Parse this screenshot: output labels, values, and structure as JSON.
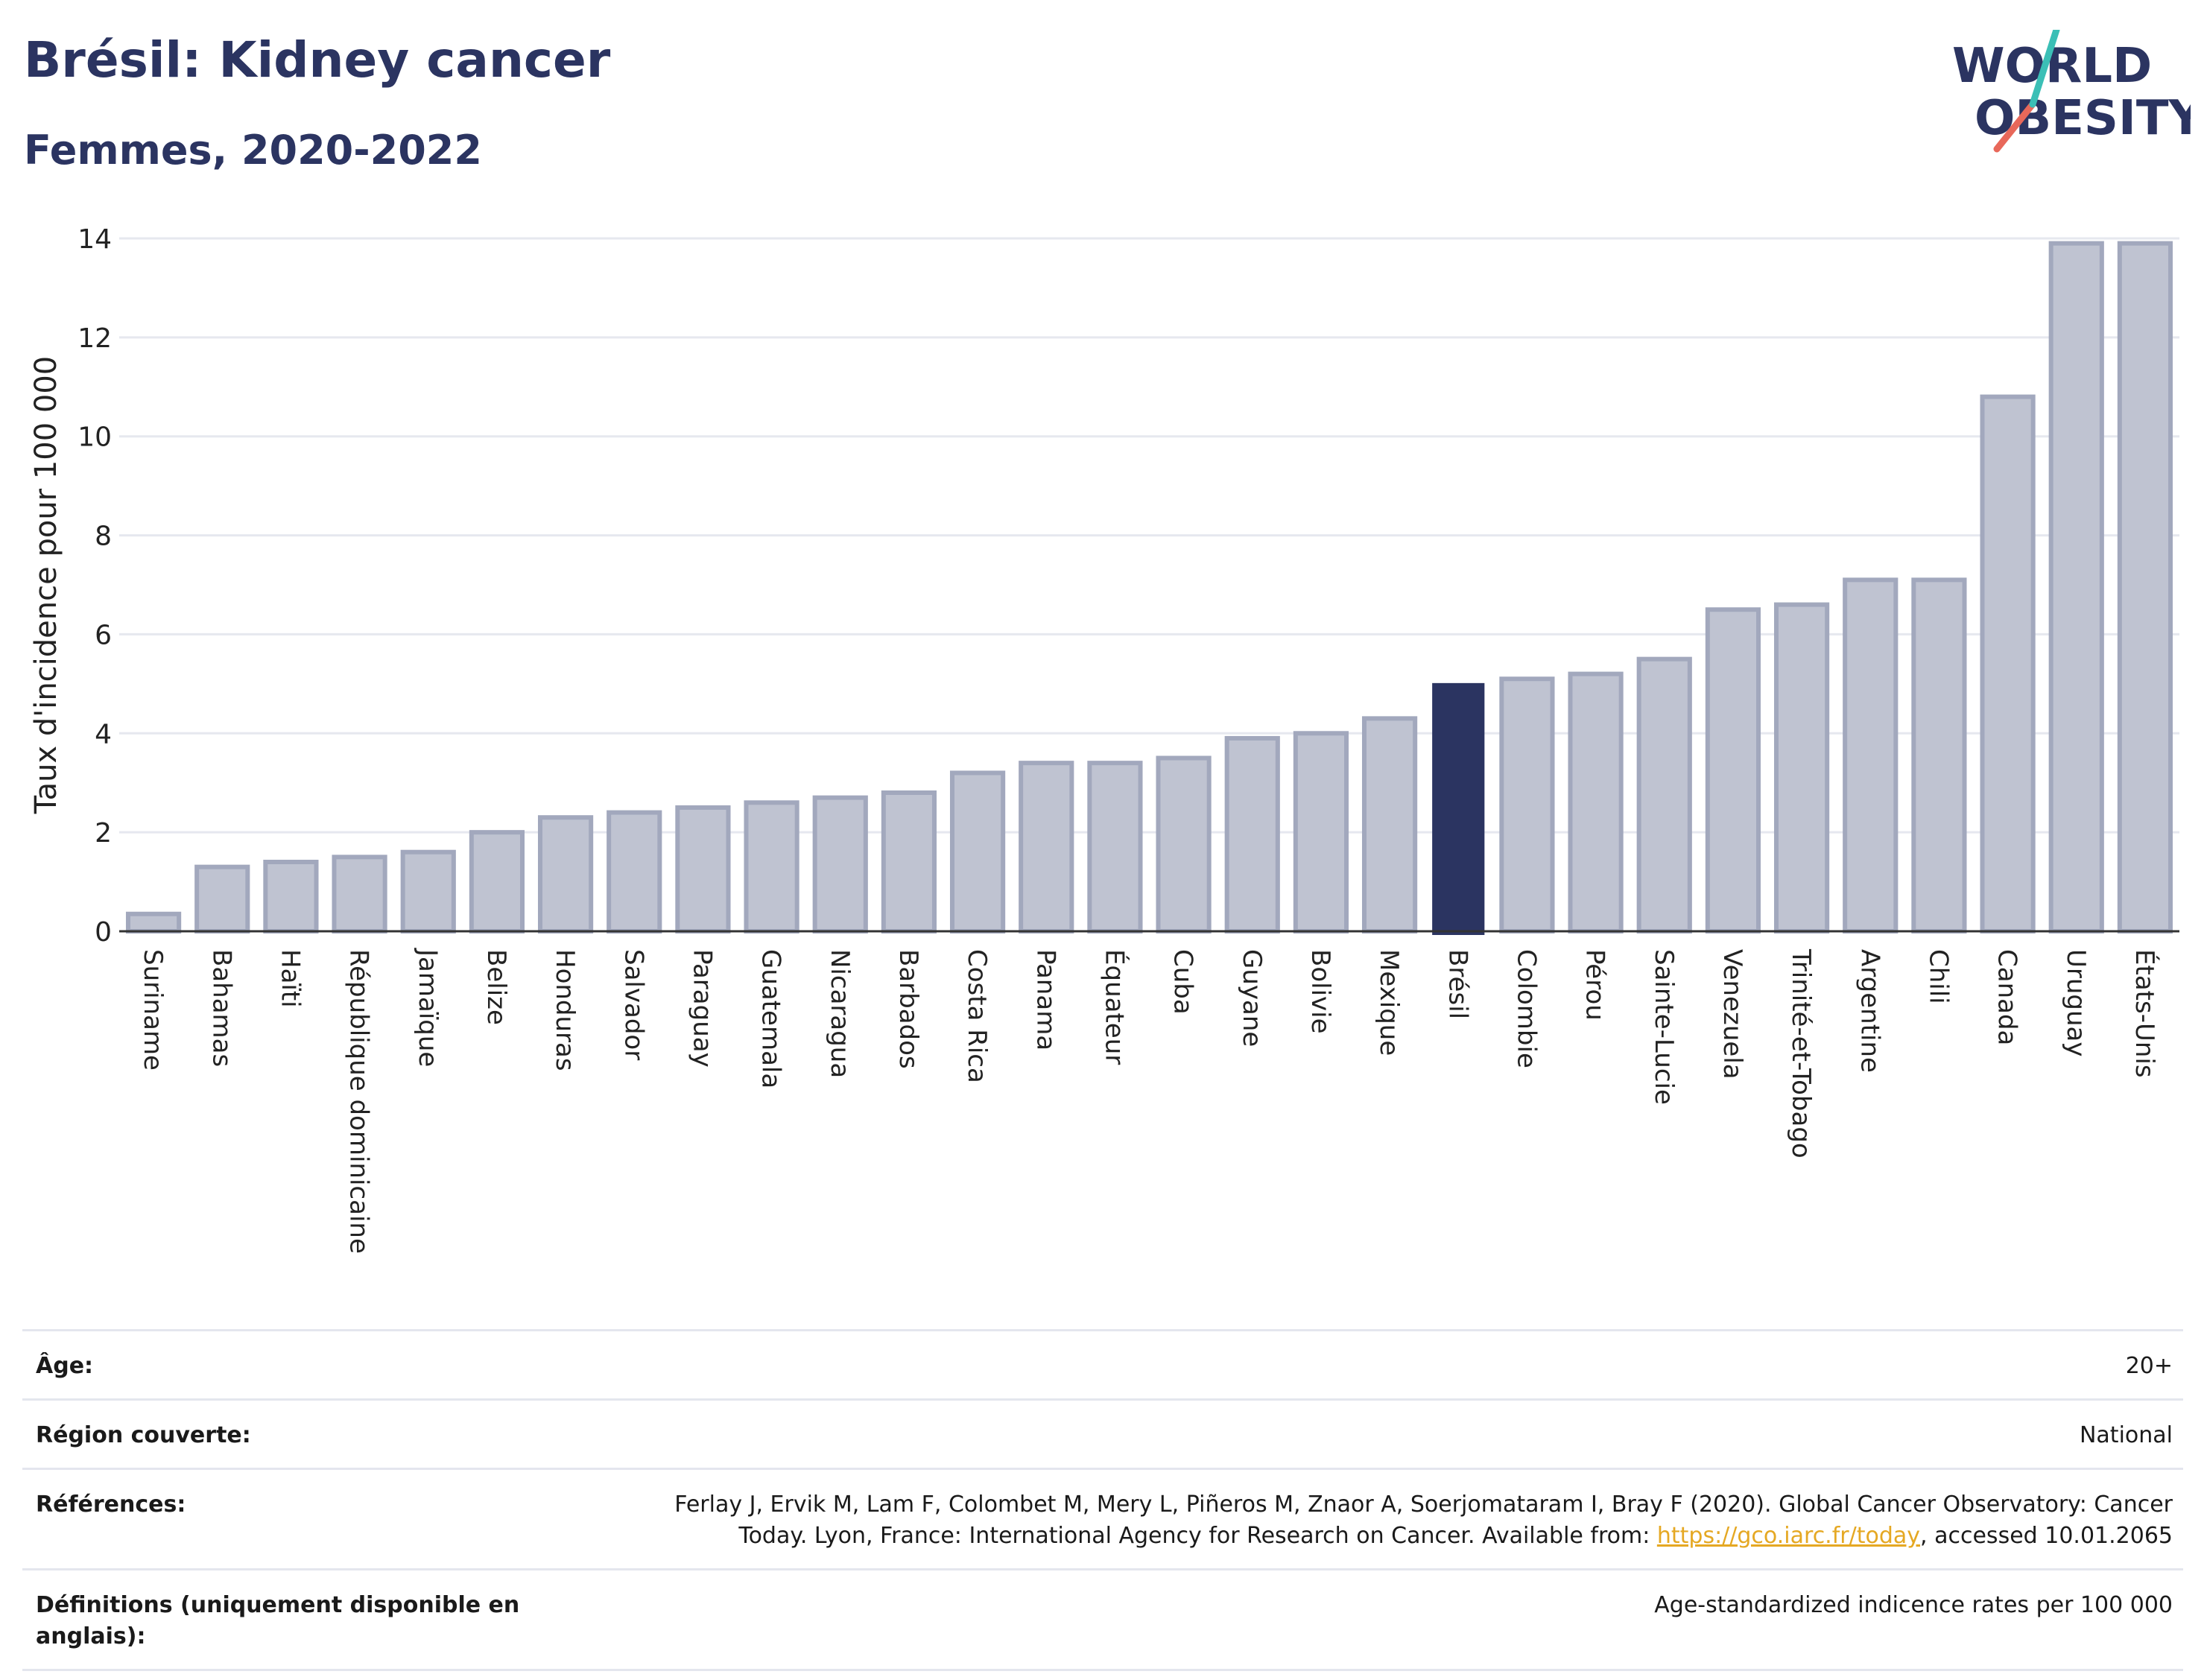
{
  "header": {
    "title": "Brésil: Kidney cancer",
    "subtitle": "Femmes, 2020-2022"
  },
  "logo": {
    "line1": "WORLD",
    "line2": "OBESITY"
  },
  "colors": {
    "bar": "#bfc3d1",
    "bar_border": "#a2a8bd",
    "highlight": "#2b3461",
    "text": "#2b3461",
    "grid": "#e6e8ef"
  },
  "chart_data": {
    "type": "bar",
    "ylabel": "Taux d'incidence pour 100 000",
    "ylim": [
      0,
      14
    ],
    "yticks": [
      0,
      2,
      4,
      6,
      8,
      10,
      12,
      14
    ],
    "highlight": "Brésil",
    "categories": [
      "Suriname",
      "Bahamas",
      "Haïti",
      "République dominicaine",
      "Jamaïque",
      "Belize",
      "Honduras",
      "Salvador",
      "Paraguay",
      "Guatemala",
      "Nicaragua",
      "Barbados",
      "Costa Rica",
      "Panama",
      "Équateur",
      "Cuba",
      "Guyane",
      "Bolivie",
      "Mexique",
      "Brésil",
      "Colombie",
      "Pérou",
      "Sainte-Lucie",
      "Venezuela",
      "Trinité-et-Tobago",
      "Argentine",
      "Chili",
      "Canada",
      "Uruguay",
      "États-Unis"
    ],
    "values": [
      0.35,
      1.3,
      1.4,
      1.5,
      1.6,
      2.0,
      2.3,
      2.4,
      2.5,
      2.6,
      2.7,
      2.8,
      3.2,
      3.4,
      3.4,
      3.5,
      3.9,
      4.0,
      4.3,
      5.0,
      5.1,
      5.2,
      5.5,
      6.5,
      6.6,
      7.1,
      7.1,
      10.8,
      13.9,
      13.9
    ]
  },
  "table": {
    "age_label": "Âge:",
    "age_value": "20+",
    "region_label": "Région couverte:",
    "region_value": "National",
    "refs_label": "Références:",
    "refs_text_line1": "Ferlay J, Ervik M, Lam F, Colombet M, Mery L, Piñeros M, Znaor A, Soerjomataram I, Bray F (2020). Global Cancer Observatory: Cancer",
    "refs_text_line2": "Today. Lyon, France: International Agency for Research on Cancer. Available from:",
    "refs_link": "https://gco.iarc.fr/today",
    "refs_text_line3": ", accessed 10.01.2065",
    "defs_label": "Définitions (uniquement disponible en anglais):",
    "defs_value": "Age-standardized indicence rates per 100 000"
  }
}
